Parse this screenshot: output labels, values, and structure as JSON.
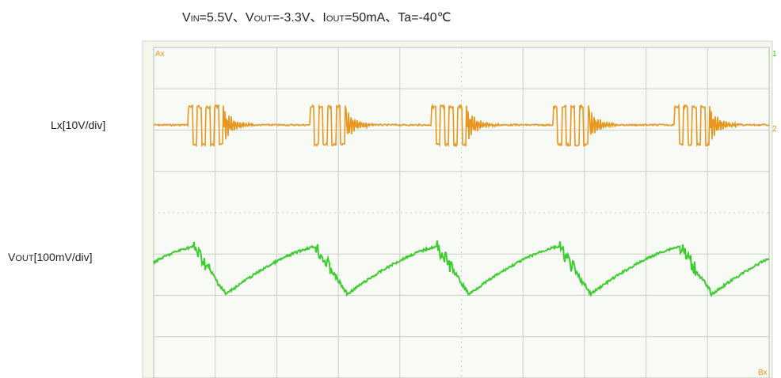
{
  "title": [
    "V",
    "IN",
    "=5.5V、V",
    "OUT",
    "=-3.3V、I",
    "OUT",
    "=50mA、Ta=-40℃"
  ],
  "labels": {
    "lx": "Lx[10V/div]",
    "vout": [
      "V",
      "OUT",
      "[100mV/div]"
    ]
  },
  "scope": {
    "cursor_a": "Ax",
    "cursor_b": "Bx",
    "marker_1": "1",
    "marker_2": "2"
  }
}
